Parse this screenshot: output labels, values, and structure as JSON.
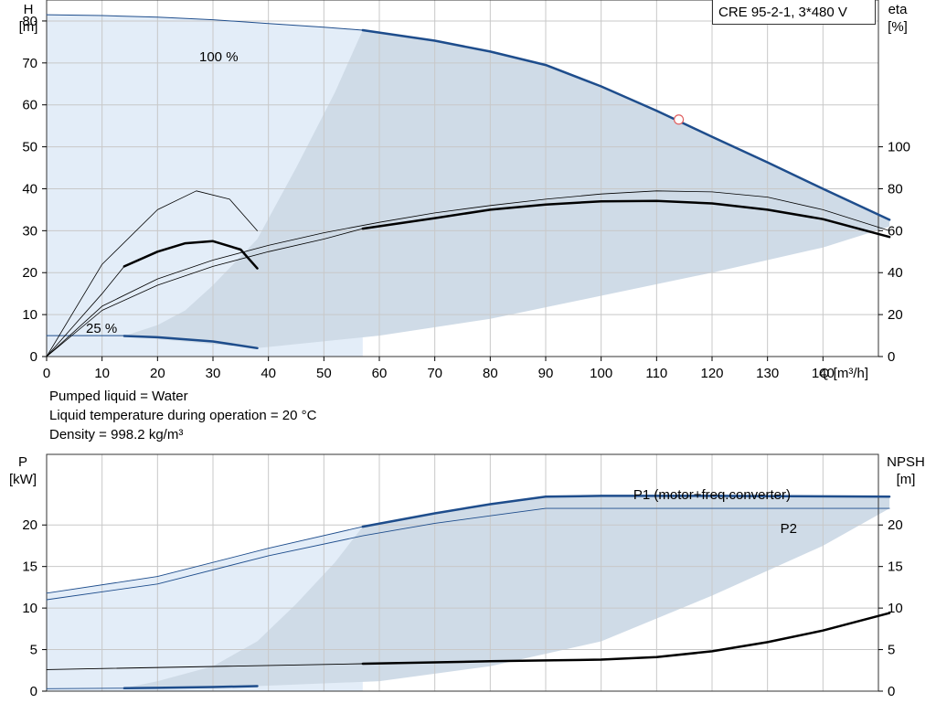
{
  "title": "CRE 95-2-1, 3*480 V",
  "info": [
    "Pumped liquid = Water",
    "Liquid temperature during operation = 20 °C",
    "Density = 998.2 kg/m³"
  ],
  "colors": {
    "blue_curve": "#1e4d8c",
    "region_light": "#e3edf8",
    "region_dark": "#cfdbe7",
    "grid": "#c8c8c8",
    "black_curve": "#000000",
    "duty_point": "#e06060"
  },
  "chart_data": [
    {
      "type": "line",
      "name": "head-efficiency",
      "x_axis": {
        "label": "Q [m³/h]",
        "range": [
          0,
          150
        ],
        "ticks": [
          0,
          10,
          20,
          30,
          40,
          50,
          60,
          70,
          80,
          90,
          100,
          110,
          120,
          130,
          140
        ]
      },
      "y_left": {
        "label_top": "H",
        "label_unit": "[m]",
        "range": [
          0,
          85
        ],
        "ticks": [
          0,
          10,
          20,
          30,
          40,
          50,
          60,
          70,
          80
        ]
      },
      "y_right": {
        "label_top": "eta",
        "label_unit": "[%]",
        "range": [
          0,
          170
        ],
        "ticks": [
          0,
          20,
          40,
          60,
          80,
          100
        ]
      },
      "annotations": [
        "100 %",
        "25 %"
      ],
      "duty_point": {
        "x": 114,
        "y": 56.5
      },
      "series": [
        {
          "id": "head_max_light",
          "axis": "left",
          "x": [
            0,
            10,
            20,
            30,
            40,
            50,
            57
          ],
          "y": [
            81.5,
            81.3,
            80.9,
            80.3,
            79.4,
            78.5,
            77.8
          ]
        },
        {
          "id": "head_max",
          "axis": "left",
          "x": [
            57,
            70,
            80,
            90,
            100,
            110,
            120,
            130,
            140,
            152
          ],
          "y": [
            77.8,
            75.3,
            72.7,
            69.5,
            64.4,
            58.6,
            52.4,
            46.3,
            40,
            32.6
          ]
        },
        {
          "id": "head_min",
          "axis": "left",
          "x": [
            0,
            5,
            14
          ],
          "y": [
            5,
            5,
            5
          ]
        },
        {
          "id": "head_min_bold",
          "axis": "left",
          "x": [
            14,
            20,
            30,
            38
          ],
          "y": [
            4.9,
            4.6,
            3.6,
            2
          ]
        },
        {
          "id": "eta_total_max",
          "axis": "right",
          "x": [
            57,
            70,
            80,
            90,
            100,
            110,
            120,
            130,
            140,
            152
          ],
          "y": [
            61,
            66,
            70,
            72.5,
            74,
            74.2,
            73,
            70,
            65.5,
            57
          ]
        },
        {
          "id": "eta_total_max_thin",
          "axis": "right",
          "x": [
            0,
            10,
            20,
            30,
            40,
            50,
            57
          ],
          "y": [
            0,
            22,
            34,
            43,
            50,
            56,
            61
          ]
        },
        {
          "id": "eta_pump_max",
          "axis": "right",
          "x": [
            0,
            10,
            20,
            30,
            40,
            50,
            60,
            70,
            80,
            90,
            100,
            110,
            120,
            130,
            140,
            152
          ],
          "y": [
            0,
            24,
            37,
            46,
            53,
            59,
            64,
            68.5,
            72,
            75,
            77.5,
            79,
            78.5,
            76,
            70,
            60
          ]
        },
        {
          "id": "eta_total_min_bold",
          "axis": "right",
          "x": [
            14,
            20,
            25,
            30,
            35,
            38
          ],
          "y": [
            43,
            50,
            54,
            55,
            51,
            42
          ]
        },
        {
          "id": "eta_pump_min_thin",
          "axis": "right",
          "x": [
            0,
            10,
            20,
            27,
            33,
            38
          ],
          "y": [
            0,
            44,
            70,
            79,
            75,
            60
          ]
        },
        {
          "id": "eta_total_min_thin",
          "axis": "right",
          "x": [
            0,
            5,
            10,
            14
          ],
          "y": [
            0,
            15,
            30,
            43
          ]
        }
      ]
    },
    {
      "type": "line",
      "name": "power-npsh",
      "x_axis": {
        "range": [
          0,
          150
        ]
      },
      "y_left": {
        "label_top": "P",
        "label_unit": "[kW]",
        "range": [
          0,
          28.5
        ],
        "ticks": [
          0,
          5,
          10,
          15,
          20
        ]
      },
      "y_right": {
        "label_top": "NPSH",
        "label_unit": "[m]",
        "range": [
          0,
          28.5
        ],
        "ticks": [
          0,
          5,
          10,
          15,
          20
        ]
      },
      "labels": {
        "p1": "P1 (motor+freq.converter)",
        "p2": "P2"
      },
      "series": [
        {
          "id": "p1_thin",
          "x": [
            0,
            20,
            40,
            57
          ],
          "y": [
            11.8,
            13.8,
            17.2,
            19.8
          ]
        },
        {
          "id": "p1_bold",
          "x": [
            57,
            70,
            80,
            90,
            100,
            120,
            152
          ],
          "y": [
            19.8,
            21.4,
            22.5,
            23.4,
            23.5,
            23.5,
            23.4
          ]
        },
        {
          "id": "p2_thin",
          "x": [
            0,
            20,
            40,
            57,
            70,
            80,
            90,
            100,
            120,
            152
          ],
          "y": [
            11,
            12.9,
            16.3,
            18.7,
            20.2,
            21.1,
            22,
            22,
            22,
            22
          ]
        },
        {
          "id": "npsh_thin",
          "x": [
            0,
            57
          ],
          "y": [
            2.6,
            3.3
          ]
        },
        {
          "id": "npsh_bold",
          "x": [
            57,
            80,
            90,
            100,
            110,
            120,
            130,
            140,
            152
          ],
          "y": [
            3.3,
            3.6,
            3.7,
            3.8,
            4.1,
            4.8,
            5.9,
            7.3,
            9.4
          ]
        },
        {
          "id": "pmin_bold",
          "x": [
            14,
            20,
            30,
            38
          ],
          "y": [
            0.35,
            0.4,
            0.5,
            0.6
          ]
        },
        {
          "id": "pmin_thin",
          "x": [
            0,
            14
          ],
          "y": [
            0.3,
            0.35
          ]
        }
      ]
    }
  ]
}
